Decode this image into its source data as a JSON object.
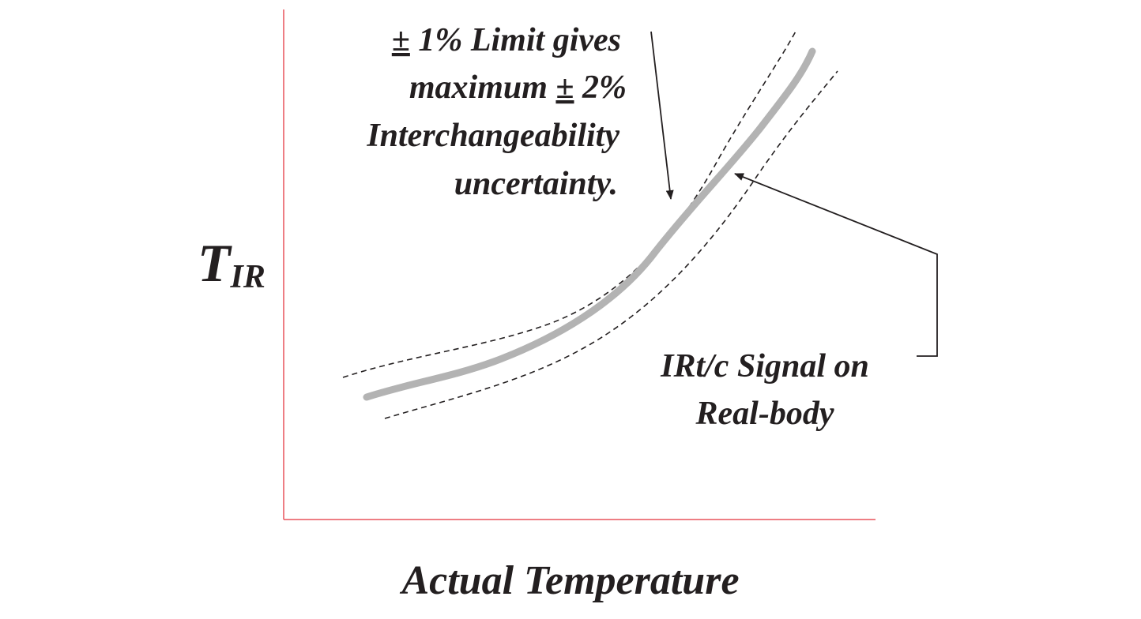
{
  "diagram": {
    "y_axis_label": {
      "main": "T",
      "subscript": "IR"
    },
    "x_axis_label": "Actual Temperature",
    "limit_annotation": {
      "line1_pm": "±",
      "line1_rest": " 1% Limit gives",
      "line2_start": "maximum ",
      "line2_pm": "±",
      "line2_end": " 2%",
      "line3": "Interchangeability",
      "line4": "uncertainty."
    },
    "signal_annotation": {
      "line1": "IRt/c Signal on",
      "line2": "Real-body"
    },
    "colors": {
      "axis": "#e8545c",
      "signal_curve": "#b3b3b3",
      "limit_curves": "#231f20",
      "text": "#231f20"
    }
  }
}
